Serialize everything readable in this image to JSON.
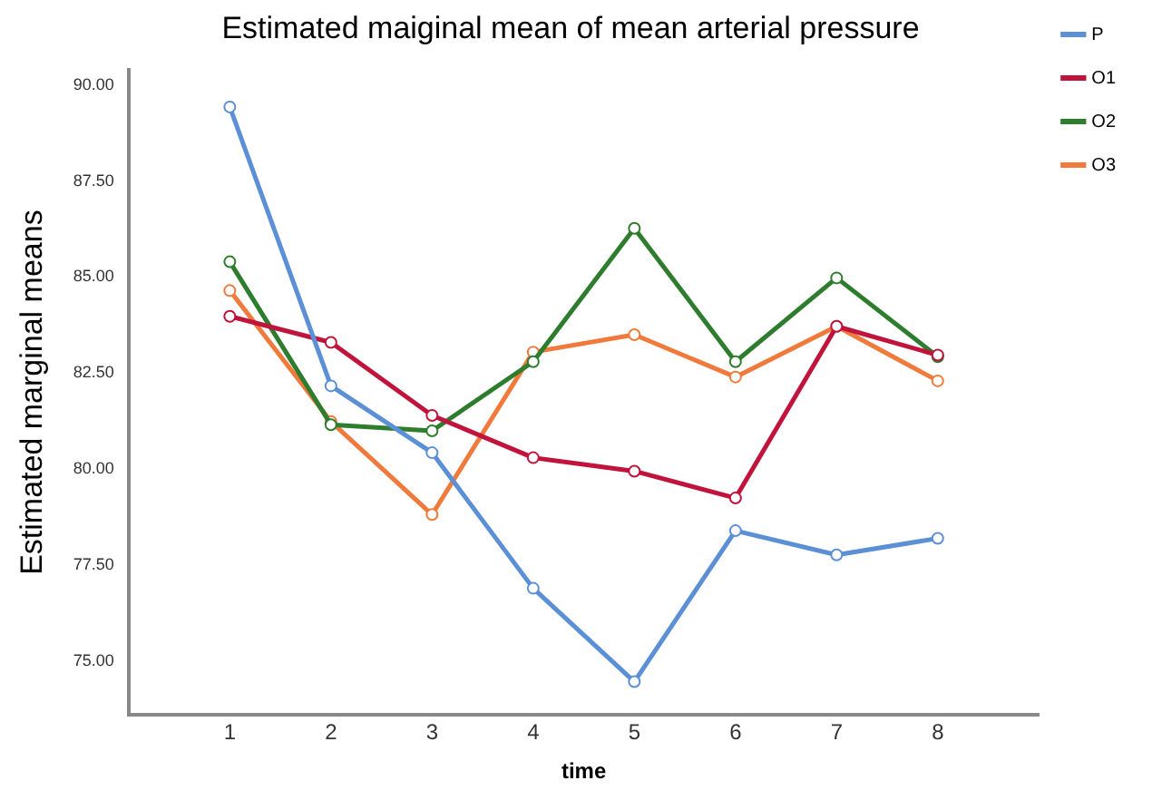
{
  "chart_data": {
    "type": "line",
    "title": "Estimated maiginal mean of mean arterial pressure",
    "xlabel": "time",
    "ylabel": "Estimated marginal means",
    "x": [
      1,
      2,
      3,
      4,
      5,
      6,
      7,
      8
    ],
    "series": [
      {
        "name": "P",
        "color": "#5b8fd6",
        "values": [
          89.43,
          82.17,
          80.43,
          76.9,
          74.47,
          78.4,
          77.77,
          78.2
        ]
      },
      {
        "name": "O1",
        "color": "#c0143c",
        "values": [
          83.98,
          83.3,
          81.4,
          80.3,
          79.95,
          79.25,
          83.72,
          82.97
        ]
      },
      {
        "name": "O2",
        "color": "#2e7d2e",
        "values": [
          85.4,
          81.16,
          81.0,
          82.8,
          86.27,
          82.8,
          84.98,
          82.93
        ]
      },
      {
        "name": "O3",
        "color": "#f07a3c",
        "values": [
          84.65,
          81.24,
          78.82,
          83.05,
          83.5,
          82.4,
          83.72,
          82.3
        ]
      }
    ],
    "xlim": [
      0,
      9
    ],
    "xticks": [
      1,
      2,
      3,
      4,
      5,
      6,
      7,
      8
    ],
    "ylim": [
      73.6,
      90.4
    ],
    "yticks": [
      {
        "value": 75,
        "label": "75.00"
      },
      {
        "value": 77.5,
        "label": "77.50"
      },
      {
        "value": 80,
        "label": "80.00"
      },
      {
        "value": 82.5,
        "label": "82.50"
      },
      {
        "value": 85,
        "label": "85.00"
      },
      {
        "value": 87.5,
        "label": "87.50"
      },
      {
        "value": 90,
        "label": "90.00"
      }
    ],
    "grid": false,
    "legend": "top right",
    "marker": "circle",
    "line_style": "solid"
  }
}
